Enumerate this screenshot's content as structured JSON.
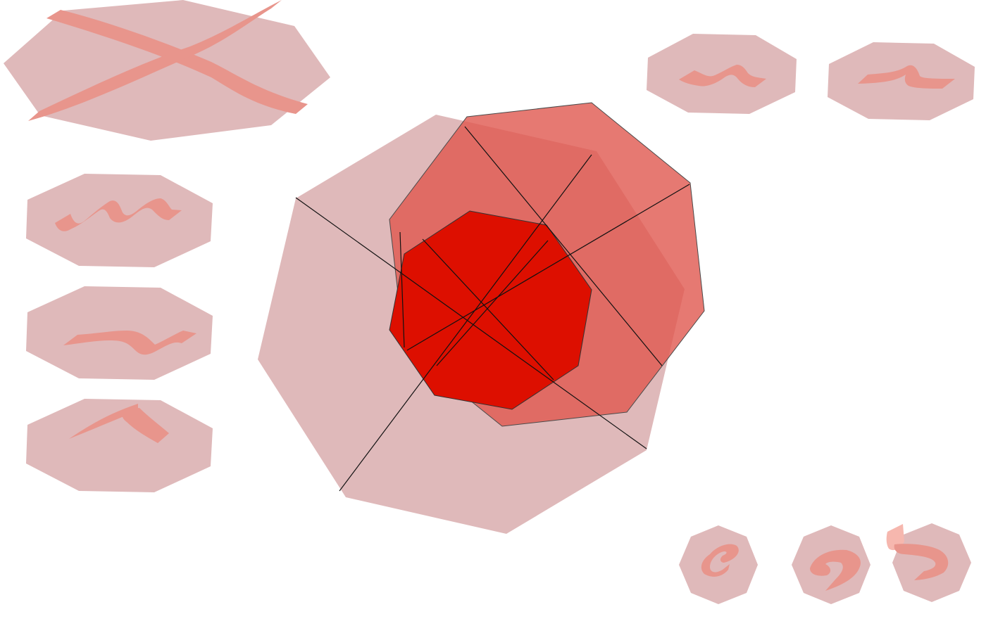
{
  "canvas": {
    "background": "#ffffff"
  },
  "colors": {
    "tile_fill": "#dfb9ba",
    "glyph_fill": "#e8958c",
    "glyph_accent": "#f6b7ae",
    "mid_plate": "#e0584f",
    "core_plate": "#dd0f00",
    "outer_plate": "#dfb9ba",
    "spoke_color": "#111111"
  },
  "gestures": [
    {
      "id": "cross",
      "shape": "octagon",
      "icon": "cross-stroke-icon"
    },
    {
      "id": "triple-wave",
      "shape": "octagon",
      "icon": "triple-wave-icon"
    },
    {
      "id": "long-wave",
      "shape": "octagon",
      "icon": "long-wave-icon"
    },
    {
      "id": "caret",
      "shape": "octagon",
      "icon": "caret-stroke-icon"
    },
    {
      "id": "squiggle",
      "shape": "octagon",
      "icon": "squiggle-icon"
    },
    {
      "id": "step",
      "shape": "octagon",
      "icon": "step-stroke-icon"
    },
    {
      "id": "curl-e",
      "shape": "octagon",
      "icon": "curl-e-icon"
    },
    {
      "id": "curl-nine",
      "shape": "octagon",
      "icon": "curl-nine-icon"
    },
    {
      "id": "curl-five",
      "shape": "octagon",
      "icon": "curl-five-icon"
    }
  ],
  "radial_menu": {
    "layers": 3,
    "spokes": 4,
    "icon": "radial-octagon-menu-icon"
  }
}
